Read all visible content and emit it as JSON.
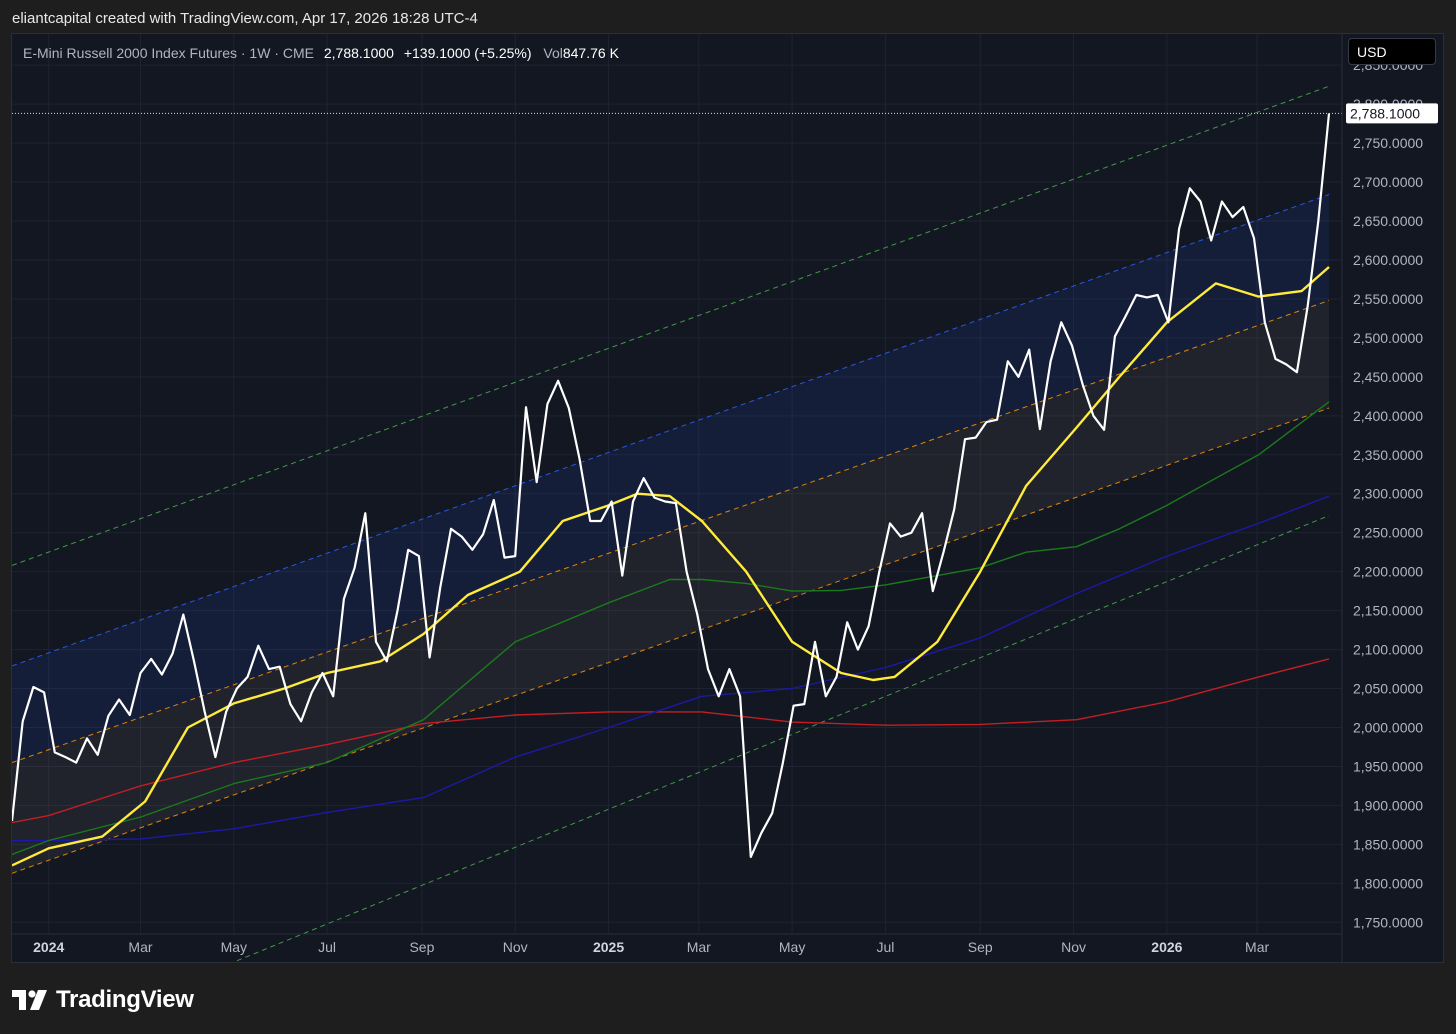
{
  "header": {
    "credit": "eliantcapital created with TradingView.com, Apr 17, 2026 18:28 UTC-4"
  },
  "legend": {
    "symbol": "E-Mini Russell 2000 Index Futures · 1W · CME",
    "price": "2,788.1000",
    "change": "+139.1000 (+5.25%)",
    "vol_label": "Vol",
    "vol_value": "847.76 K"
  },
  "currency_button": "USD",
  "last_price_label": "2,788.1000",
  "footer": {
    "brand": "TradingView"
  },
  "colors": {
    "price": "#ffffff",
    "ma_yellow": "#ffeb3b",
    "ma_green": "#1b7a1b",
    "ma_blue": "#1a1aa6",
    "ma_red": "#c41e24",
    "channel_green": "#4caf50",
    "channel_blue": "#2962ff",
    "channel_orange": "#ff9800"
  },
  "chart_data": {
    "type": "line",
    "title": "E-Mini Russell 2000 Index Futures",
    "ylim": [
      1735,
      2890
    ],
    "x_tick_labels": [
      "2024",
      "Mar",
      "May",
      "Jul",
      "Sep",
      "Nov",
      "2025",
      "Mar",
      "May",
      "Jul",
      "Sep",
      "Nov",
      "2026",
      "Mar"
    ],
    "x_tick_dates": [
      "2024-01-01",
      "2024-03-01",
      "2024-05-01",
      "2024-07-01",
      "2024-09-01",
      "2024-11-01",
      "2025-01-01",
      "2025-03-01",
      "2025-05-01",
      "2025-07-01",
      "2025-09-01",
      "2025-11-01",
      "2026-01-01",
      "2026-03-01"
    ],
    "y_tick_values": [
      1750,
      1800,
      1850,
      1900,
      1950,
      2000,
      2050,
      2100,
      2150,
      2200,
      2250,
      2300,
      2350,
      2400,
      2450,
      2500,
      2550,
      2600,
      2650,
      2700,
      2750,
      2800,
      2850
    ],
    "y_tick_labels": [
      "1,750.0000",
      "1,800.0000",
      "1,850.0000",
      "1,900.0000",
      "1,950.0000",
      "2,000.0000",
      "2,050.0000",
      "2,100.0000",
      "2,150.0000",
      "2,200.0000",
      "2,250.0000",
      "2,300.0000",
      "2,350.0000",
      "2,400.0000",
      "2,450.0000",
      "2,500.0000",
      "2,550.0000",
      "2,600.0000",
      "2,650.0000",
      "2,700.0000",
      "2,750.0000",
      "2,800.0000",
      "2,850.0000"
    ],
    "last_price": 2788.1,
    "price": {
      "dates": [
        "2023-12-08",
        "2023-12-15",
        "2023-12-22",
        "2023-12-29",
        "2024-01-05",
        "2024-01-12",
        "2024-01-19",
        "2024-01-26",
        "2024-02-02",
        "2024-02-09",
        "2024-02-16",
        "2024-02-23",
        "2024-03-01",
        "2024-03-08",
        "2024-03-15",
        "2024-03-22",
        "2024-03-29",
        "2024-04-05",
        "2024-04-12",
        "2024-04-19",
        "2024-04-26",
        "2024-05-03",
        "2024-05-10",
        "2024-05-17",
        "2024-05-24",
        "2024-05-31",
        "2024-06-07",
        "2024-06-14",
        "2024-06-21",
        "2024-06-28",
        "2024-07-05",
        "2024-07-12",
        "2024-07-19",
        "2024-07-26",
        "2024-08-02",
        "2024-08-09",
        "2024-08-16",
        "2024-08-23",
        "2024-08-30",
        "2024-09-06",
        "2024-09-13",
        "2024-09-20",
        "2024-09-27",
        "2024-10-04",
        "2024-10-11",
        "2024-10-18",
        "2024-10-25",
        "2024-11-01",
        "2024-11-08",
        "2024-11-15",
        "2024-11-22",
        "2024-11-29",
        "2024-12-06",
        "2024-12-13",
        "2024-12-20",
        "2024-12-27",
        "2025-01-03",
        "2025-01-10",
        "2025-01-17",
        "2025-01-24",
        "2025-01-31",
        "2025-02-07",
        "2025-02-14",
        "2025-02-21",
        "2025-02-28",
        "2025-03-07",
        "2025-03-14",
        "2025-03-21",
        "2025-03-28",
        "2025-04-04",
        "2025-04-11",
        "2025-04-18",
        "2025-04-25",
        "2025-05-02",
        "2025-05-09",
        "2025-05-16",
        "2025-05-23",
        "2025-05-30",
        "2025-06-06",
        "2025-06-13",
        "2025-06-20",
        "2025-06-27",
        "2025-07-04",
        "2025-07-11",
        "2025-07-18",
        "2025-07-25",
        "2025-08-01",
        "2025-08-08",
        "2025-08-15",
        "2025-08-22",
        "2025-08-29",
        "2025-09-05",
        "2025-09-12",
        "2025-09-19",
        "2025-09-26",
        "2025-10-03",
        "2025-10-10",
        "2025-10-17",
        "2025-10-24",
        "2025-10-31",
        "2025-11-07",
        "2025-11-14",
        "2025-11-21",
        "2025-11-28",
        "2025-12-05",
        "2025-12-12",
        "2025-12-19",
        "2025-12-26",
        "2026-01-02",
        "2026-01-09",
        "2026-01-16",
        "2026-01-23",
        "2026-01-30",
        "2026-02-06",
        "2026-02-13",
        "2026-02-20",
        "2026-02-27",
        "2026-03-06",
        "2026-03-13",
        "2026-03-20",
        "2026-03-27",
        "2026-04-03",
        "2026-04-10",
        "2026-04-17"
      ],
      "values": [
        1880,
        2008,
        2052,
        2045,
        1968,
        1962,
        1955,
        1986,
        1965,
        2015,
        2036,
        2016,
        2070,
        2088,
        2068,
        2095,
        2145,
        2085,
        2020,
        1962,
        2020,
        2050,
        2065,
        2105,
        2075,
        2078,
        2030,
        2008,
        2045,
        2070,
        2040,
        2165,
        2205,
        2275,
        2110,
        2085,
        2150,
        2228,
        2220,
        2090,
        2180,
        2255,
        2245,
        2228,
        2248,
        2292,
        2218,
        2220,
        2411,
        2315,
        2415,
        2445,
        2410,
        2345,
        2265,
        2265,
        2290,
        2195,
        2290,
        2320,
        2295,
        2290,
        2288,
        2200,
        2145,
        2075,
        2040,
        2075,
        2040,
        1834,
        1865,
        1890,
        1955,
        2028,
        2030,
        2110,
        2040,
        2065,
        2135,
        2100,
        2130,
        2200,
        2262,
        2245,
        2250,
        2275,
        2175,
        2225,
        2280,
        2370,
        2372,
        2392,
        2395,
        2470,
        2450,
        2485,
        2383,
        2470,
        2520,
        2490,
        2440,
        2400,
        2382,
        2502,
        2528,
        2555,
        2552,
        2555,
        2520,
        2640,
        2692,
        2675,
        2625,
        2675,
        2655,
        2668,
        2628,
        2520,
        2473,
        2466,
        2456,
        2540,
        2650,
        2788
      ]
    },
    "series": [
      {
        "name": "",
        "color_key": "ma_yellow",
        "dates": [
          "2023-12-08",
          "2024-01-01",
          "2024-02-05",
          "2024-03-04",
          "2024-04-01",
          "2024-05-01",
          "2024-06-03",
          "2024-07-01",
          "2024-08-05",
          "2024-09-02",
          "2024-10-01",
          "2024-11-04",
          "2024-12-02",
          "2025-01-01",
          "2025-01-20",
          "2025-02-10",
          "2025-03-03",
          "2025-04-01",
          "2025-05-01",
          "2025-06-02",
          "2025-06-23",
          "2025-07-07",
          "2025-08-04",
          "2025-09-01",
          "2025-10-01",
          "2025-11-03",
          "2025-12-01",
          "2026-01-01",
          "2026-02-02",
          "2026-03-02",
          "2026-03-30",
          "2026-04-17"
        ],
        "values": [
          1823,
          1845,
          1860,
          1905,
          2000,
          2031,
          2050,
          2070,
          2085,
          2120,
          2170,
          2200,
          2265,
          2285,
          2300,
          2297,
          2265,
          2200,
          2110,
          2070,
          2061,
          2065,
          2110,
          2200,
          2310,
          2385,
          2450,
          2520,
          2570,
          2553,
          2560,
          2591
        ]
      },
      {
        "name": "",
        "color_key": "ma_green",
        "dates": [
          "2023-12-08",
          "2024-01-01",
          "2024-03-01",
          "2024-05-01",
          "2024-07-01",
          "2024-09-02",
          "2024-11-01",
          "2025-01-01",
          "2025-02-10",
          "2025-03-03",
          "2025-04-01",
          "2025-05-01",
          "2025-06-02",
          "2025-07-01",
          "2025-08-04",
          "2025-09-01",
          "2025-10-01",
          "2025-11-03",
          "2025-12-01",
          "2026-01-01",
          "2026-02-02",
          "2026-03-02",
          "2026-04-17"
        ],
        "values": [
          1837,
          1855,
          1885,
          1928,
          1955,
          2010,
          2110,
          2160,
          2190,
          2190,
          2185,
          2175,
          2176,
          2183,
          2195,
          2205,
          2225,
          2232,
          2255,
          2285,
          2320,
          2350,
          2418
        ]
      },
      {
        "name": "",
        "color_key": "ma_blue",
        "dates": [
          "2023-12-08",
          "2024-01-01",
          "2024-03-01",
          "2024-05-01",
          "2024-07-01",
          "2024-09-02",
          "2024-11-01",
          "2025-01-01",
          "2025-03-03",
          "2025-05-01",
          "2025-07-01",
          "2025-09-01",
          "2025-11-03",
          "2026-01-01",
          "2026-03-02",
          "2026-04-17"
        ],
        "values": [
          1855,
          1855,
          1857,
          1870,
          1891,
          1910,
          1962,
          2000,
          2040,
          2050,
          2077,
          2115,
          2172,
          2220,
          2262,
          2297
        ]
      },
      {
        "name": "",
        "color_key": "ma_red",
        "dates": [
          "2023-12-08",
          "2024-01-01",
          "2024-03-01",
          "2024-05-01",
          "2024-07-01",
          "2024-09-02",
          "2024-11-01",
          "2025-01-01",
          "2025-03-03",
          "2025-05-01",
          "2025-07-01",
          "2025-09-01",
          "2025-11-03",
          "2026-01-01",
          "2026-03-02",
          "2026-04-17"
        ],
        "values": [
          1878,
          1887,
          1925,
          1955,
          1978,
          2005,
          2016,
          2020,
          2020,
          2007,
          2003,
          2004,
          2010,
          2033,
          2065,
          2088
        ]
      }
    ],
    "channel_lines": [
      {
        "style": "dashed",
        "color_key": "channel_green",
        "x": [
          "2023-12-08",
          "2026-04-17"
        ],
        "y": [
          2208,
          2823
        ]
      },
      {
        "style": "dashed",
        "color_key": "channel_blue",
        "x": [
          "2023-12-08",
          "2026-04-17"
        ],
        "y": [
          2079,
          2684
        ]
      },
      {
        "style": "dashed",
        "color_key": "channel_orange",
        "x": [
          "2023-12-08",
          "2026-04-17"
        ],
        "y": [
          1955,
          2548
        ]
      },
      {
        "style": "dashed",
        "color_key": "channel_orange",
        "x": [
          "2023-12-08",
          "2026-04-17"
        ],
        "y": [
          1813,
          2410
        ]
      },
      {
        "style": "dashed",
        "color_key": "channel_green",
        "x": [
          "2023-12-08",
          "2026-04-17"
        ],
        "y": [
          1583,
          2272
        ]
      }
    ],
    "grid": true,
    "legend_position": "top-left"
  }
}
